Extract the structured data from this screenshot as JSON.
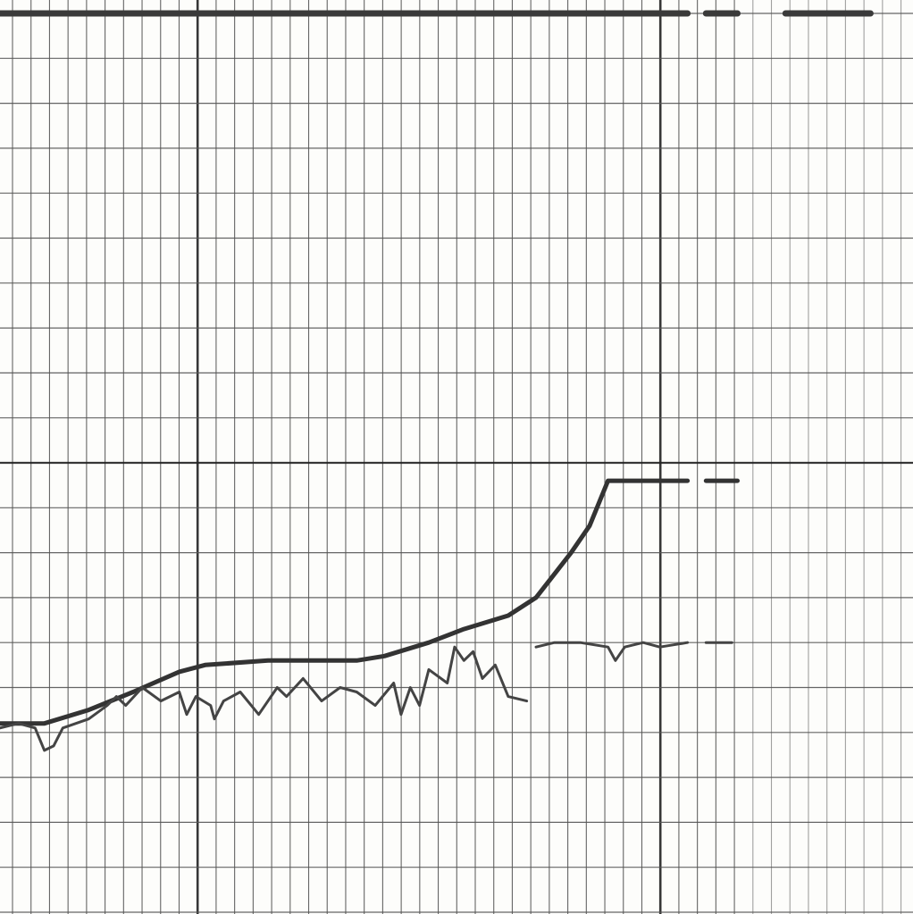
{
  "chart_data": {
    "type": "line",
    "grid": true,
    "xlim": [
      0,
      49.4
    ],
    "ylim": [
      0,
      20
    ],
    "series": [
      {
        "color": "#3a3a3a",
        "width": 7,
        "x": [
          0,
          37.2,
          null,
          38.2,
          39.9,
          null,
          42.5,
          47.1
        ],
        "values": [
          20,
          20,
          null,
          20,
          20,
          null,
          20,
          20
        ]
      },
      {
        "color": "#333333",
        "width": 5,
        "x": [
          0,
          2.4,
          4.8,
          7.2,
          9.7,
          11.1,
          14.5,
          19.3,
          20.8,
          23.2,
          25.1,
          27.5,
          29.0,
          30.9,
          31.9,
          32.9,
          37.2,
          null,
          38.2,
          39.9
        ],
        "values": [
          4.2,
          4.2,
          4.5,
          4.9,
          5.35,
          5.5,
          5.6,
          5.6,
          5.7,
          6.0,
          6.3,
          6.6,
          7.0,
          8.0,
          8.6,
          9.6,
          9.6,
          null,
          9.6,
          9.6
        ]
      },
      {
        "color": "#444444",
        "width": 3,
        "x": [
          0,
          1.0,
          1.9,
          2.4,
          2.9,
          3.4,
          4.8,
          5.8,
          6.3,
          6.8,
          7.7,
          8.7,
          9.7,
          10.1,
          10.6,
          11.4,
          11.6,
          12.1,
          13.0,
          14.0,
          15.0,
          15.5,
          16.4,
          17.4,
          18.4,
          19.3,
          20.3,
          21.3,
          21.7,
          22.2,
          22.7,
          23.2,
          24.2,
          24.6,
          25.1,
          25.6,
          26.1,
          26.8,
          27.5,
          28.5,
          null,
          29.0,
          30.0,
          31.4,
          32.9,
          33.3,
          33.8,
          34.8,
          35.7,
          37.2,
          null,
          38.2,
          39.6
        ],
        "values": [
          4.1,
          4.2,
          4.1,
          3.6,
          3.7,
          4.1,
          4.3,
          4.6,
          4.8,
          4.6,
          5.0,
          4.7,
          4.9,
          4.4,
          4.8,
          4.6,
          4.3,
          4.7,
          4.9,
          4.4,
          5.0,
          4.8,
          5.2,
          4.7,
          5.0,
          4.9,
          4.6,
          5.1,
          4.4,
          5.0,
          4.6,
          5.4,
          5.1,
          5.9,
          5.6,
          5.8,
          5.2,
          5.5,
          4.8,
          4.7,
          null,
          5.9,
          6.0,
          6.0,
          5.9,
          5.6,
          5.9,
          6.0,
          5.9,
          6.0,
          null,
          6.0,
          6.0
        ]
      }
    ]
  }
}
